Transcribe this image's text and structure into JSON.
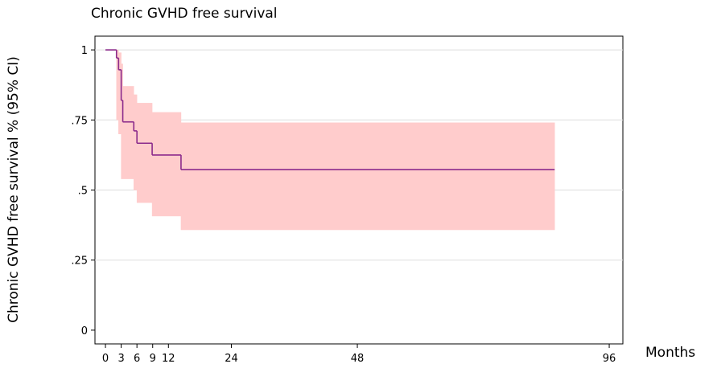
{
  "chart_data": {
    "type": "step",
    "title": "Chronic GVHD free survival",
    "y_label": "Chronic GVHD free survival % (95% CI)",
    "x_label": "Months",
    "x": [
      0,
      2.1,
      2.5,
      3.0,
      3.3,
      5.4,
      6.0,
      8.9,
      14.4,
      85.6
    ],
    "values": [
      1,
      0.971,
      0.929,
      0.82,
      0.743,
      0.711,
      0.667,
      0.625,
      0.573,
      0.573
    ],
    "ci_lower": [
      1,
      0.75,
      0.7,
      0.54,
      0.54,
      0.5,
      0.455,
      0.407,
      0.358,
      0.358
    ],
    "ci_upper": [
      1,
      1,
      0.99,
      0.95,
      0.87,
      0.84,
      0.81,
      0.777,
      0.74,
      0.74
    ],
    "color": "#8b2a8b",
    "band_color": "#ffcccc",
    "xlim": [
      -2,
      98.6
    ],
    "xticks": [
      0,
      3,
      6,
      9,
      12,
      24,
      48,
      96
    ],
    "ylim": [
      -0.049,
      1.049
    ],
    "yticks": [
      0,
      {
        "value": 0.25,
        "label": ".25"
      },
      {
        "value": 0.5,
        "label": ".5"
      },
      {
        "value": 0.75,
        "label": ".75"
      },
      1
    ],
    "grid": true
  }
}
